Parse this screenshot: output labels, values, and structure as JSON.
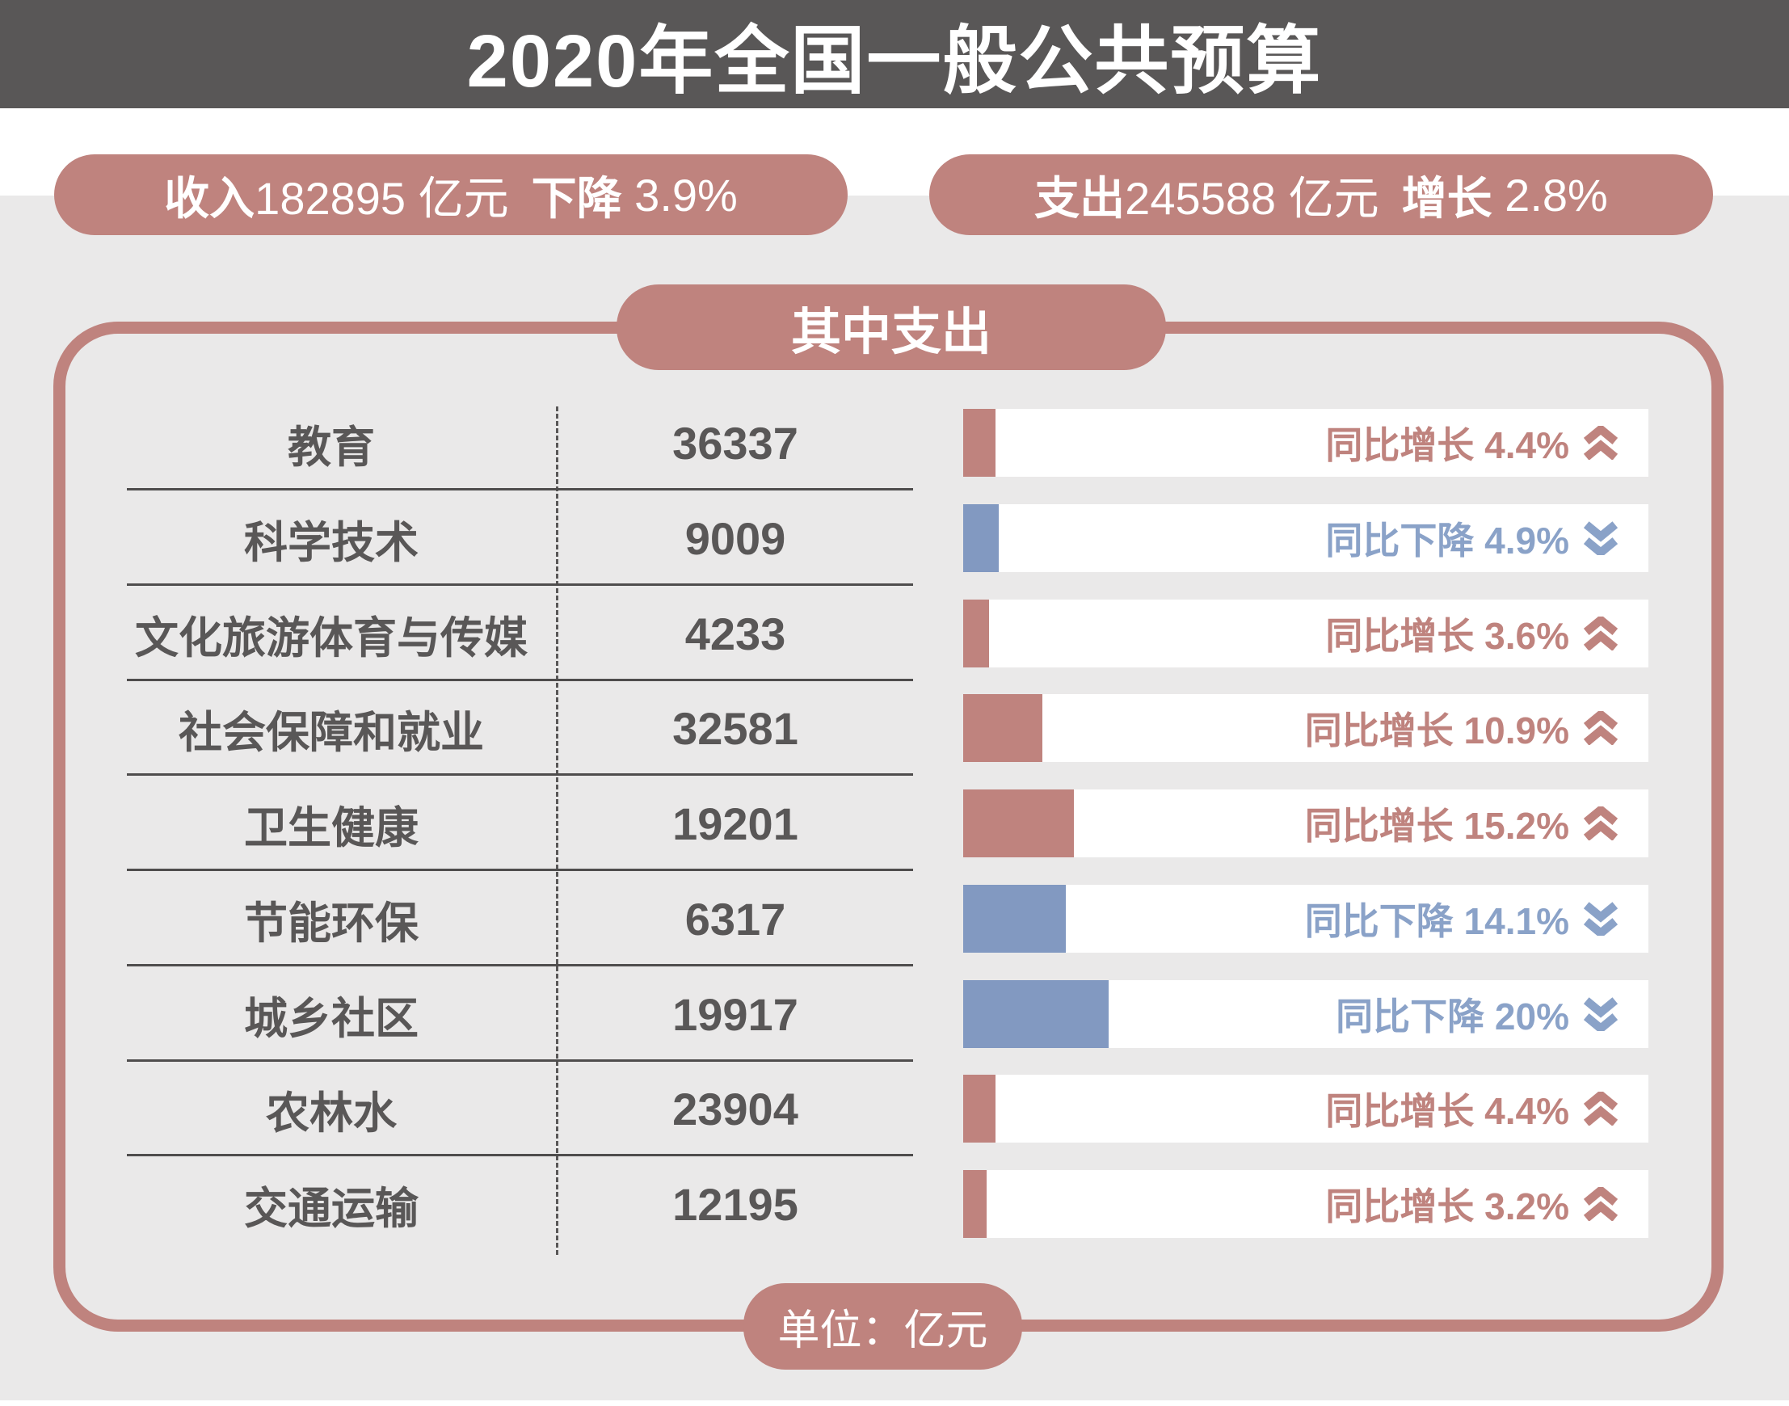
{
  "header": {
    "title": "2020年全国一般公共预算"
  },
  "summary": {
    "income": {
      "label": "收入",
      "value": "182895 亿元",
      "change_label": "下降",
      "change_value": "3.9%"
    },
    "expense": {
      "label": "支出",
      "value": "245588 亿元",
      "change_label": "增长",
      "change_value": "2.8%"
    }
  },
  "panel": {
    "title": "其中支出",
    "footer": "单位：亿元"
  },
  "colors": {
    "header_bg": "#595757",
    "accent_rose": "#bf837e",
    "accent_blue": "#8299c1",
    "text_dark": "#595757",
    "section_bg": "#eae9e9",
    "track_bg": "#ffffff"
  },
  "chart_data": {
    "type": "bar",
    "title": "其中支出",
    "unit": "亿元",
    "legend": "bar width encodes year-over-year change percent; rose = increase, blue = decrease",
    "categories": [
      "教育",
      "科学技术",
      "文化旅游体育与传媒",
      "社会保障和就业",
      "卫生健康",
      "节能环保",
      "城乡社区",
      "农林水",
      "交通运输"
    ],
    "values": [
      36337,
      9009,
      4233,
      32581,
      19201,
      6317,
      19917,
      23904,
      12195
    ],
    "rows": [
      {
        "category": "教育",
        "value": "36337",
        "change_label": "同比增长",
        "pct_text": "4.4%",
        "pct": 4.4,
        "direction": "up"
      },
      {
        "category": "科学技术",
        "value": "9009",
        "change_label": "同比下降",
        "pct_text": "4.9%",
        "pct": 4.9,
        "direction": "down"
      },
      {
        "category": "文化旅游体育与传媒",
        "value": "4233",
        "change_label": "同比增长",
        "pct_text": "3.6%",
        "pct": 3.6,
        "direction": "up"
      },
      {
        "category": "社会保障和就业",
        "value": "32581",
        "change_label": "同比增长",
        "pct_text": "10.9%",
        "pct": 10.9,
        "direction": "up"
      },
      {
        "category": "卫生健康",
        "value": "19201",
        "change_label": "同比增长",
        "pct_text": "15.2%",
        "pct": 15.2,
        "direction": "up"
      },
      {
        "category": "节能环保",
        "value": "6317",
        "change_label": "同比下降",
        "pct_text": "14.1%",
        "pct": 14.1,
        "direction": "down"
      },
      {
        "category": "城乡社区",
        "value": "19917",
        "change_label": "同比下降",
        "pct_text": "20%",
        "pct": 20,
        "direction": "down"
      },
      {
        "category": "农林水",
        "value": "23904",
        "change_label": "同比增长",
        "pct_text": "4.4%",
        "pct": 4.4,
        "direction": "up"
      },
      {
        "category": "交通运输",
        "value": "12195",
        "change_label": "同比增长",
        "pct_text": "3.2%",
        "pct": 3.2,
        "direction": "up"
      }
    ]
  }
}
